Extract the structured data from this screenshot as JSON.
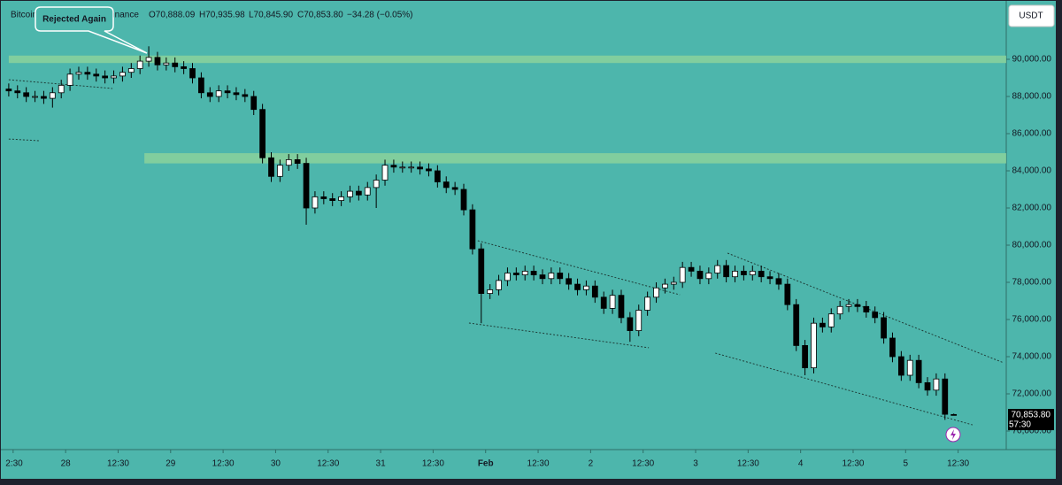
{
  "chart_data": {
    "type": "candlestick",
    "symbol": "Bitcoin / TetherUS · 1h · Binance",
    "ohlc_labels": [
      "O70,888.09",
      "H70,935.98",
      "L70,845.90",
      "C70,853.80"
    ],
    "change_label": "−34.28 (−0.05%)",
    "currency": "USDT",
    "annotation": "Rejected Again",
    "last_price_label": "70,853.80",
    "countdown": "57:30",
    "up_color": "#ffffff",
    "down_color": "#000000",
    "x": [
      2,
      4,
      6,
      8,
      10,
      12,
      14,
      16,
      18,
      20,
      22,
      24,
      26,
      28,
      30,
      32,
      34,
      36,
      38,
      40,
      42,
      44,
      46,
      48,
      50,
      52,
      54,
      56,
      58,
      60,
      62,
      64,
      66,
      68,
      70,
      72,
      74,
      76,
      78,
      80,
      82,
      84,
      86,
      88,
      90,
      92,
      94,
      96,
      98,
      100,
      102,
      104,
      106,
      108,
      110,
      112,
      114,
      116,
      118,
      120,
      122,
      124,
      126,
      128,
      130,
      132,
      134,
      136,
      138,
      140,
      142,
      144,
      146,
      148,
      150,
      152,
      154,
      156,
      158,
      160,
      162,
      164,
      166,
      168,
      170,
      172,
      174,
      176,
      178,
      180,
      182,
      184,
      186,
      188,
      190,
      192,
      194,
      196,
      198,
      200,
      202,
      204,
      206,
      208,
      210,
      212,
      214,
      216,
      218
    ],
    "open": [
      88400,
      88300,
      88200,
      88000,
      88000,
      87900,
      88200,
      88600,
      89200,
      89300,
      89200,
      89100,
      89000,
      89100,
      89300,
      89500,
      89900,
      90100,
      89700,
      89800,
      89600,
      89500,
      89000,
      88200,
      88000,
      88300,
      88200,
      88100,
      88000,
      87300,
      84700,
      83700,
      84300,
      84600,
      84400,
      82000,
      82600,
      82500,
      82400,
      82600,
      82900,
      82700,
      83100,
      83500,
      84300,
      84200,
      84200,
      84200,
      84100,
      84000,
      83400,
      83100,
      83000,
      81900,
      79800,
      77400,
      77600,
      78100,
      78500,
      78400,
      78600,
      78400,
      78200,
      78500,
      78200,
      77900,
      77600,
      77800,
      77200,
      76600,
      77300,
      76100,
      75400,
      76500,
      77200,
      77700,
      77900,
      78000,
      78800,
      78600,
      78200,
      78500,
      78900,
      78300,
      78600,
      78400,
      78600,
      78300,
      78200,
      77900,
      76800,
      74600,
      73400,
      75800,
      75600,
      76300,
      76700,
      76800,
      76700,
      76400,
      76100,
      75000,
      74000,
      73000,
      73800,
      72600,
      72200,
      72800,
      70888.09
    ],
    "high": [
      88700,
      88600,
      88500,
      88300,
      88300,
      88500,
      88900,
      89500,
      89600,
      89600,
      89500,
      89400,
      89400,
      89600,
      89800,
      90200,
      90700,
      90400,
      90100,
      90100,
      89900,
      89800,
      89300,
      88500,
      88600,
      88600,
      88500,
      88400,
      88300,
      87600,
      85000,
      84600,
      84900,
      84900,
      84700,
      82900,
      82900,
      82800,
      82900,
      83200,
      83200,
      83400,
      83800,
      84600,
      84600,
      84500,
      84500,
      84500,
      84400,
      84300,
      83700,
      83400,
      83300,
      82200,
      80100,
      77900,
      78400,
      78800,
      78800,
      78900,
      78900,
      78700,
      78800,
      78800,
      78500,
      78200,
      78100,
      78100,
      77500,
      77600,
      77600,
      76400,
      76800,
      77500,
      78000,
      78200,
      78300,
      79100,
      79100,
      78900,
      78800,
      79200,
      79200,
      78900,
      78900,
      78900,
      78900,
      78600,
      78500,
      78200,
      77100,
      74900,
      76100,
      76100,
      76600,
      77000,
      77100,
      77100,
      77000,
      76700,
      76400,
      75300,
      74300,
      74100,
      74100,
      72900,
      73100,
      73100,
      70935.98
    ],
    "low": [
      88000,
      87900,
      87700,
      87700,
      87600,
      87400,
      87900,
      88300,
      88900,
      88900,
      88800,
      88700,
      88700,
      88800,
      89000,
      89200,
      89600,
      89400,
      89400,
      89300,
      89200,
      88700,
      87900,
      87700,
      87700,
      87900,
      87800,
      87700,
      87000,
      84400,
      83400,
      83400,
      84000,
      84100,
      81100,
      81700,
      82200,
      82100,
      82100,
      82300,
      82400,
      82400,
      82000,
      83200,
      83900,
      83900,
      83900,
      83800,
      83700,
      83100,
      82800,
      82700,
      81600,
      79500,
      75800,
      77100,
      77300,
      77800,
      78100,
      78100,
      78100,
      77900,
      77900,
      77900,
      77600,
      77300,
      77300,
      76900,
      76300,
      76300,
      75800,
      74800,
      75100,
      76200,
      76900,
      77400,
      77600,
      77700,
      78300,
      77900,
      77900,
      78200,
      78000,
      78000,
      78100,
      78100,
      78000,
      77900,
      77600,
      76500,
      74300,
      73000,
      73100,
      75300,
      75300,
      76000,
      76400,
      76400,
      76100,
      75800,
      74700,
      73700,
      72700,
      72700,
      72300,
      71900,
      71900,
      70600,
      70845.9
    ],
    "close": [
      88300,
      88200,
      88000,
      88000,
      87900,
      88200,
      88600,
      89200,
      89300,
      89200,
      89100,
      89000,
      89100,
      89300,
      89500,
      89900,
      90100,
      89700,
      89800,
      89600,
      89500,
      89000,
      88200,
      88000,
      88300,
      88200,
      88100,
      88000,
      87300,
      84700,
      83700,
      84300,
      84600,
      84400,
      82000,
      82600,
      82500,
      82400,
      82600,
      82900,
      82700,
      83100,
      83500,
      84300,
      84200,
      84200,
      84200,
      84100,
      84000,
      83400,
      83100,
      83000,
      81900,
      79800,
      77400,
      77600,
      78100,
      78500,
      78400,
      78600,
      78400,
      78200,
      78500,
      78200,
      77900,
      77600,
      77800,
      77200,
      76600,
      77300,
      76100,
      75400,
      76500,
      77200,
      77700,
      77900,
      78000,
      78800,
      78600,
      78200,
      78500,
      78900,
      78300,
      78600,
      78400,
      78600,
      78300,
      78200,
      77900,
      76800,
      74600,
      73400,
      75800,
      75600,
      76300,
      76700,
      76800,
      76700,
      76400,
      76100,
      75000,
      74000,
      73000,
      73800,
      72600,
      72200,
      72800,
      70900,
      70853.8
    ],
    "xlim": [
      0,
      230
    ],
    "xticks": [
      {
        "value": 3,
        "label": "2:30"
      },
      {
        "value": 15,
        "label": "28"
      },
      {
        "value": 27,
        "label": "12:30"
      },
      {
        "value": 39,
        "label": "29"
      },
      {
        "value": 51,
        "label": "12:30"
      },
      {
        "value": 63,
        "label": "30"
      },
      {
        "value": 75,
        "label": "12:30"
      },
      {
        "value": 87,
        "label": "31"
      },
      {
        "value": 99,
        "label": "12:30"
      },
      {
        "value": 111,
        "label": "Feb"
      },
      {
        "value": 123,
        "label": "12:30"
      },
      {
        "value": 135,
        "label": "2"
      },
      {
        "value": 147,
        "label": "12:30"
      },
      {
        "value": 159,
        "label": "3"
      },
      {
        "value": 171,
        "label": "12:30"
      },
      {
        "value": 183,
        "label": "4"
      },
      {
        "value": 195,
        "label": "12:30"
      },
      {
        "value": 207,
        "label": "5"
      },
      {
        "value": 219,
        "label": "12:30"
      }
    ],
    "ylim": [
      69000,
      93190
    ],
    "yticks": [
      {
        "value": 70000,
        "label": "70,000.00"
      },
      {
        "value": 72000,
        "label": "72,000.00"
      },
      {
        "value": 74000,
        "label": "74,000.00"
      },
      {
        "value": 76000,
        "label": "76,000.00"
      },
      {
        "value": 78000,
        "label": "78,000.00"
      },
      {
        "value": 80000,
        "label": "80,000.00"
      },
      {
        "value": 82000,
        "label": "82,000.00"
      },
      {
        "value": 84000,
        "label": "84,000.00"
      },
      {
        "value": 86000,
        "label": "86,000.00"
      },
      {
        "value": 88000,
        "label": "88,000.00"
      },
      {
        "value": 90000,
        "label": "90,000.00"
      }
    ],
    "zones": [
      {
        "x": [
          2,
          230
        ],
        "y": [
          89800,
          90200
        ],
        "color": "#93d69a"
      },
      {
        "x": [
          33,
          230
        ],
        "y": [
          84400,
          84950
        ],
        "color": "#93d69a"
      }
    ],
    "trendlines": [
      {
        "x": [
          2,
          25.7
        ],
        "y": [
          88900,
          88430
        ]
      },
      {
        "x": [
          2,
          8.9
        ],
        "y": [
          85710,
          85620
        ]
      },
      {
        "x": [
          109.2,
          155.4
        ],
        "y": [
          80240,
          77330
        ]
      },
      {
        "x": [
          107.2,
          148.3
        ],
        "y": [
          75810,
          74480
        ]
      },
      {
        "x": [
          166.3,
          229.4
        ],
        "y": [
          79570,
          73670
        ]
      },
      {
        "x": [
          163.5,
          222.3
        ],
        "y": [
          74190,
          70330
        ]
      }
    ]
  }
}
